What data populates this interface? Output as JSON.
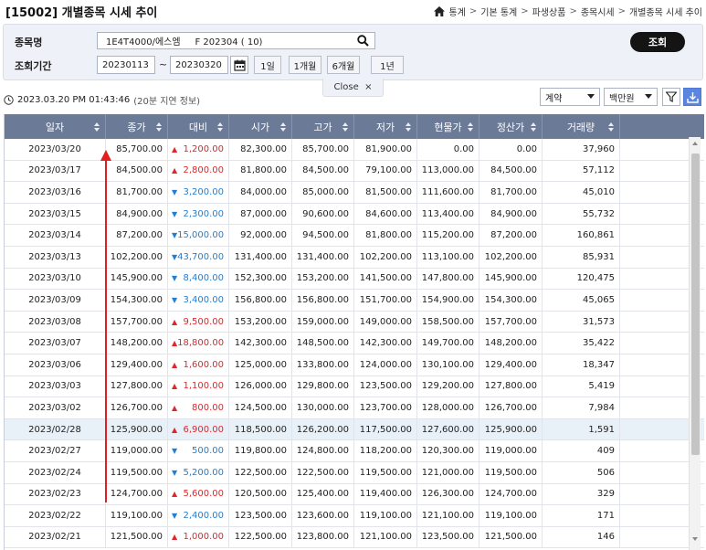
{
  "header": {
    "title": "[15002] 개별종목 시세 추이",
    "breadcrumb": [
      "통계",
      "기본 통계",
      "파생상품",
      "종목시세",
      "개별종목 시세 추이"
    ]
  },
  "search": {
    "stock_label": "종목명",
    "stock_value": "1E4T4000/에스엠     F 202304 ( 10)",
    "period_label": "조회기간",
    "start_date": "20230113",
    "tilde": "~",
    "end_date": "20230320",
    "period_buttons": [
      "1일",
      "1개월",
      "6개월",
      "1년"
    ],
    "query_button": "조회",
    "close_label": "Close  ×"
  },
  "info": {
    "timestamp": "2023.03.20 PM 01:43:46",
    "delay": "(20분 지연 정보)",
    "type_select": "계약",
    "unit_select": "백만원"
  },
  "colors": {
    "up": "#e0262a",
    "down": "#1f7fd6",
    "header_bg": "#6b7a96",
    "selected_row": "#e8f1f8",
    "annotation": "#e02020"
  },
  "table": {
    "columns": [
      "일자",
      "종가",
      "대비",
      "시가",
      "고가",
      "저가",
      "현물가",
      "정산가",
      "거래량"
    ],
    "rows": [
      {
        "date": "2023/03/20",
        "close": "85,700.00",
        "dir": "up",
        "change": "1,200.00",
        "open": "82,300.00",
        "high": "85,700.00",
        "low": "81,900.00",
        "spot": "0.00",
        "settle": "0.00",
        "volume": "37,960"
      },
      {
        "date": "2023/03/17",
        "close": "84,500.00",
        "dir": "up",
        "change": "2,800.00",
        "open": "81,800.00",
        "high": "84,500.00",
        "low": "79,100.00",
        "spot": "113,000.00",
        "settle": "84,500.00",
        "volume": "57,112"
      },
      {
        "date": "2023/03/16",
        "close": "81,700.00",
        "dir": "down",
        "change": "3,200.00",
        "open": "84,000.00",
        "high": "85,000.00",
        "low": "81,500.00",
        "spot": "111,600.00",
        "settle": "81,700.00",
        "volume": "45,010"
      },
      {
        "date": "2023/03/15",
        "close": "84,900.00",
        "dir": "down",
        "change": "2,300.00",
        "open": "87,000.00",
        "high": "90,600.00",
        "low": "84,600.00",
        "spot": "113,400.00",
        "settle": "84,900.00",
        "volume": "55,732"
      },
      {
        "date": "2023/03/14",
        "close": "87,200.00",
        "dir": "down",
        "change": "15,000.00",
        "open": "92,000.00",
        "high": "94,500.00",
        "low": "81,800.00",
        "spot": "115,200.00",
        "settle": "87,200.00",
        "volume": "160,861"
      },
      {
        "date": "2023/03/13",
        "close": "102,200.00",
        "dir": "down",
        "change": "43,700.00",
        "open": "131,400.00",
        "high": "131,400.00",
        "low": "102,200.00",
        "spot": "113,100.00",
        "settle": "102,200.00",
        "volume": "85,931"
      },
      {
        "date": "2023/03/10",
        "close": "145,900.00",
        "dir": "down",
        "change": "8,400.00",
        "open": "152,300.00",
        "high": "153,200.00",
        "low": "141,500.00",
        "spot": "147,800.00",
        "settle": "145,900.00",
        "volume": "120,475"
      },
      {
        "date": "2023/03/09",
        "close": "154,300.00",
        "dir": "down",
        "change": "3,400.00",
        "open": "156,800.00",
        "high": "156,800.00",
        "low": "151,700.00",
        "spot": "154,900.00",
        "settle": "154,300.00",
        "volume": "45,065"
      },
      {
        "date": "2023/03/08",
        "close": "157,700.00",
        "dir": "up",
        "change": "9,500.00",
        "open": "153,200.00",
        "high": "159,000.00",
        "low": "149,000.00",
        "spot": "158,500.00",
        "settle": "157,700.00",
        "volume": "31,573"
      },
      {
        "date": "2023/03/07",
        "close": "148,200.00",
        "dir": "up",
        "change": "18,800.00",
        "open": "142,300.00",
        "high": "148,500.00",
        "low": "142,300.00",
        "spot": "149,700.00",
        "settle": "148,200.00",
        "volume": "35,422"
      },
      {
        "date": "2023/03/06",
        "close": "129,400.00",
        "dir": "up",
        "change": "1,600.00",
        "open": "125,000.00",
        "high": "133,800.00",
        "low": "124,000.00",
        "spot": "130,100.00",
        "settle": "129,400.00",
        "volume": "18,347"
      },
      {
        "date": "2023/03/03",
        "close": "127,800.00",
        "dir": "up",
        "change": "1,100.00",
        "open": "126,000.00",
        "high": "129,800.00",
        "low": "123,500.00",
        "spot": "129,200.00",
        "settle": "127,800.00",
        "volume": "5,419"
      },
      {
        "date": "2023/03/02",
        "close": "126,700.00",
        "dir": "up",
        "change": "800.00",
        "open": "124,500.00",
        "high": "130,000.00",
        "low": "123,700.00",
        "spot": "128,000.00",
        "settle": "126,700.00",
        "volume": "7,984"
      },
      {
        "date": "2023/02/28",
        "close": "125,900.00",
        "dir": "up",
        "change": "6,900.00",
        "open": "118,500.00",
        "high": "126,200.00",
        "low": "117,500.00",
        "spot": "127,600.00",
        "settle": "125,900.00",
        "volume": "1,591"
      },
      {
        "date": "2023/02/27",
        "close": "119,000.00",
        "dir": "down",
        "change": "500.00",
        "open": "119,800.00",
        "high": "124,800.00",
        "low": "118,200.00",
        "spot": "120,300.00",
        "settle": "119,000.00",
        "volume": "409"
      },
      {
        "date": "2023/02/24",
        "close": "119,500.00",
        "dir": "down",
        "change": "5,200.00",
        "open": "122,500.00",
        "high": "122,500.00",
        "low": "119,500.00",
        "spot": "121,000.00",
        "settle": "119,500.00",
        "volume": "506"
      },
      {
        "date": "2023/02/23",
        "close": "124,700.00",
        "dir": "up",
        "change": "5,600.00",
        "open": "120,500.00",
        "high": "125,400.00",
        "low": "119,400.00",
        "spot": "126,300.00",
        "settle": "124,700.00",
        "volume": "329"
      },
      {
        "date": "2023/02/22",
        "close": "119,100.00",
        "dir": "down",
        "change": "2,400.00",
        "open": "123,500.00",
        "high": "123,600.00",
        "low": "119,100.00",
        "spot": "121,100.00",
        "settle": "119,100.00",
        "volume": "171"
      },
      {
        "date": "2023/02/21",
        "close": "121,500.00",
        "dir": "up",
        "change": "1,000.00",
        "open": "122,500.00",
        "high": "123,800.00",
        "low": "121,100.00",
        "spot": "123,500.00",
        "settle": "121,500.00",
        "volume": "146"
      }
    ]
  }
}
